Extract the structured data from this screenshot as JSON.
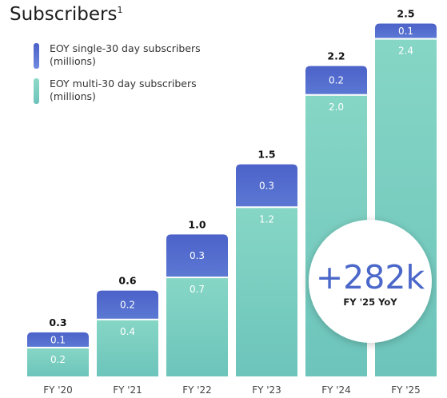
{
  "chart_data": {
    "type": "bar",
    "stacked": true,
    "title": "Subscribers",
    "title_superscript": "1",
    "categories": [
      "FY '20",
      "FY '21",
      "FY '22",
      "FY '23",
      "FY '24",
      "FY '25"
    ],
    "series": [
      {
        "name": "EOY multi-30 day subscribers (millions)",
        "values": [
          0.2,
          0.4,
          0.7,
          1.2,
          2.0,
          2.4
        ],
        "color": "#7ed0c1"
      },
      {
        "name": "EOY single-30 day subscribers (millions)",
        "values": [
          0.1,
          0.2,
          0.3,
          0.3,
          0.2,
          0.1
        ],
        "color": "#5069cc"
      }
    ],
    "totals": [
      0.3,
      0.6,
      1.0,
      1.5,
      2.2,
      2.5
    ],
    "legend_lines": [
      [
        "EOY single-30 day subscribers",
        "(millions)"
      ],
      [
        "EOY multi-30 day subscribers",
        "(millions)"
      ]
    ],
    "legend_position": "top-left",
    "ylim": [
      0,
      2.5
    ],
    "grid": false,
    "annotation": {
      "value": "+282k",
      "caption": "FY '25 YoY"
    }
  }
}
